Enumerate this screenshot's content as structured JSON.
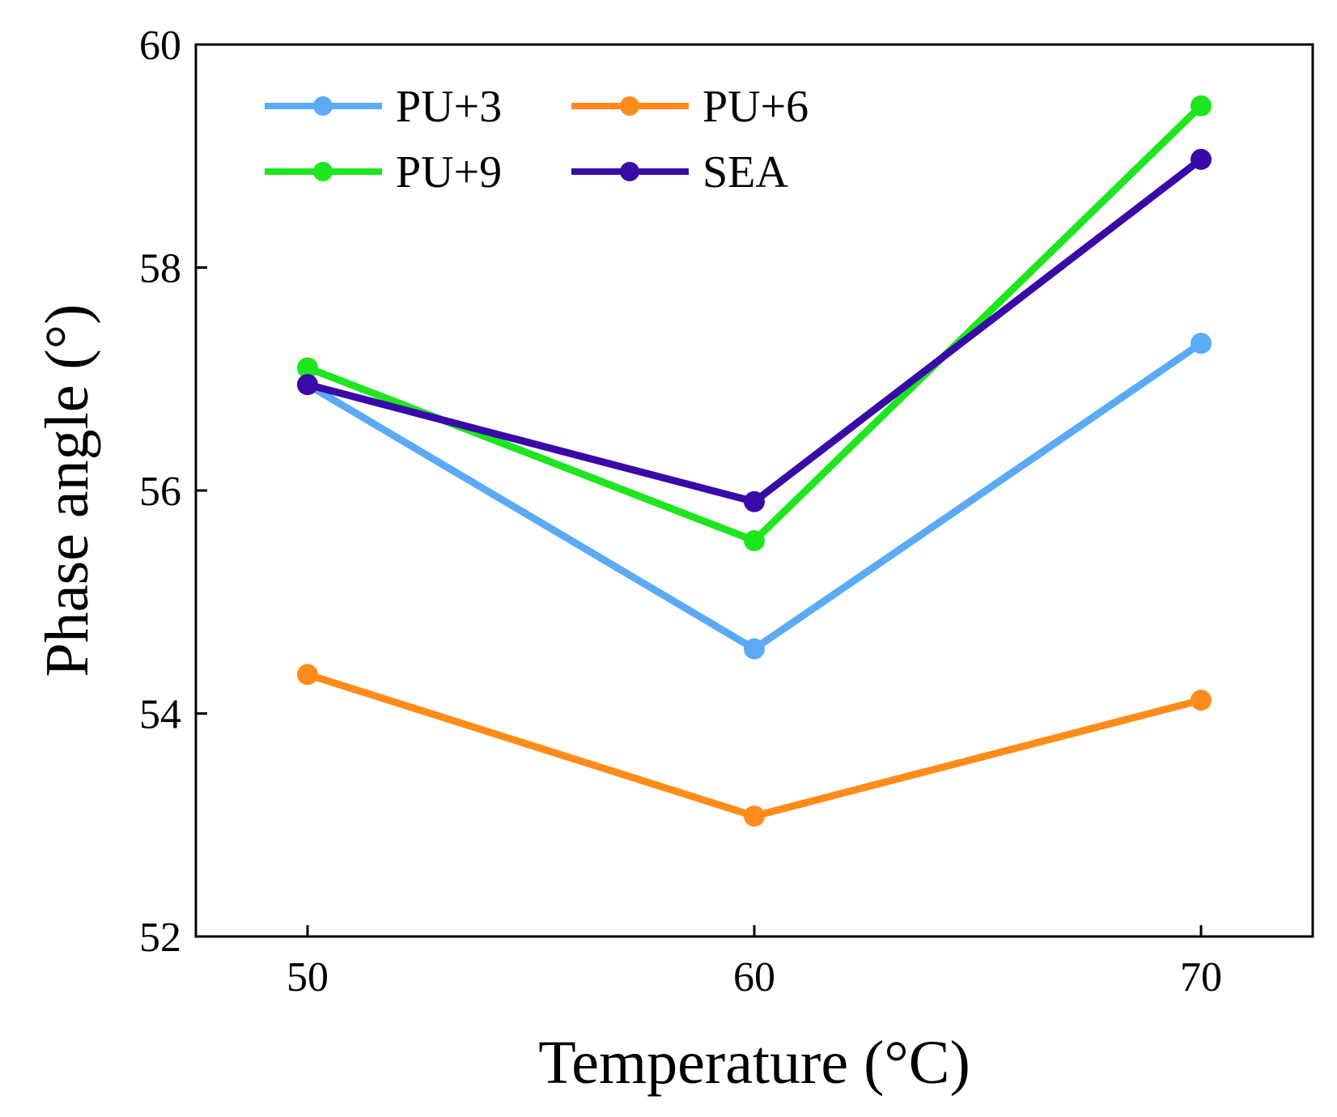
{
  "chart_data": {
    "type": "line",
    "title": "",
    "xlabel": "Temperature (°C)",
    "ylabel": "Phase angle (°)",
    "x": [
      50,
      60,
      70
    ],
    "x_tick_labels": [
      "50",
      "60",
      "70"
    ],
    "xlim": [
      47.5,
      72.5
    ],
    "ylim": [
      52,
      60
    ],
    "y_ticks": [
      52,
      54,
      56,
      58,
      60
    ],
    "y_tick_labels": [
      "52",
      "54",
      "56",
      "58",
      "60"
    ],
    "grid": false,
    "legend_position": "top-left",
    "legend_columns": 2,
    "series": [
      {
        "name": "PU+3",
        "color": "#5aaaf5",
        "values": [
          56.95,
          54.58,
          57.32
        ]
      },
      {
        "name": "PU+6",
        "color": "#ff8c1a",
        "values": [
          54.35,
          53.08,
          54.12
        ]
      },
      {
        "name": "PU+9",
        "color": "#1ee61e",
        "values": [
          57.1,
          55.55,
          59.45
        ]
      },
      {
        "name": "SEA",
        "color": "#3a0aa8",
        "values": [
          56.95,
          55.9,
          58.97
        ]
      }
    ]
  }
}
